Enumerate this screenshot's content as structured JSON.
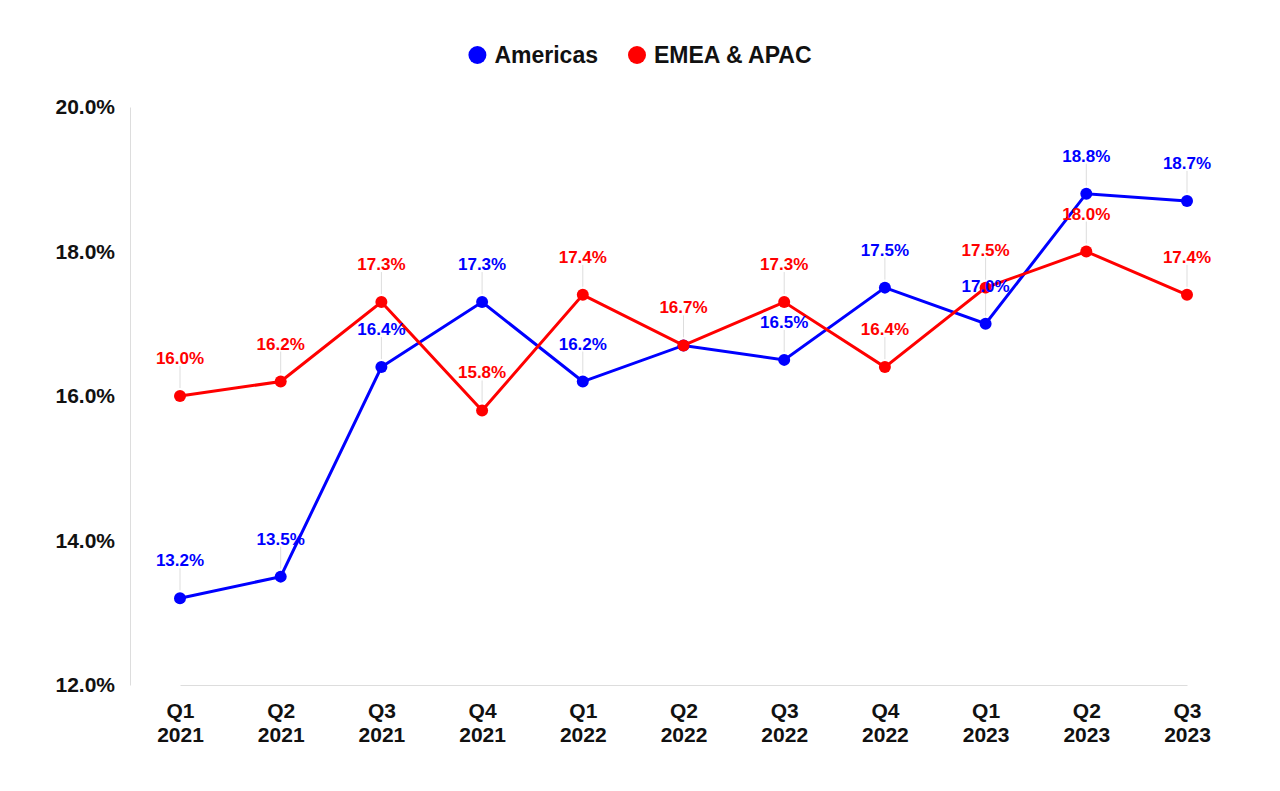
{
  "chart_data": {
    "type": "line",
    "categories": [
      "Q1 2021",
      "Q2 2021",
      "Q3 2021",
      "Q4 2021",
      "Q1 2022",
      "Q2 2022",
      "Q3 2022",
      "Q4 2022",
      "Q1 2023",
      "Q2 2023",
      "Q3 2023"
    ],
    "series": [
      {
        "name": "Americas",
        "color": "#0000ff",
        "marker": "circle",
        "values": [
          13.2,
          13.5,
          16.4,
          17.3,
          16.2,
          16.7,
          16.5,
          17.5,
          17.0,
          18.8,
          18.7
        ],
        "value_labels": [
          "13.2%",
          "13.5%",
          "16.4%",
          "17.3%",
          "16.2%",
          null,
          "16.5%",
          "17.5%",
          "17.0%",
          "18.8%",
          "18.7%"
        ]
      },
      {
        "name": "EMEA & APAC",
        "color": "#ff0000",
        "marker": "circle",
        "values": [
          16.0,
          16.2,
          17.3,
          15.8,
          17.4,
          16.7,
          17.3,
          16.4,
          17.5,
          18.0,
          17.4
        ],
        "value_labels": [
          "16.0%",
          "16.2%",
          "17.3%",
          "15.8%",
          "17.4%",
          "16.7%",
          "17.3%",
          "16.4%",
          "17.5%",
          "18.0%",
          "17.4%"
        ]
      }
    ],
    "ylim": [
      12,
      20
    ],
    "yticks": [
      {
        "value": 12,
        "label": "12.0%"
      },
      {
        "value": 14,
        "label": "14.0%"
      },
      {
        "value": 16,
        "label": "16.0%"
      },
      {
        "value": 18,
        "label": "18.0%"
      },
      {
        "value": 20,
        "label": "20.0%"
      }
    ],
    "grid": false,
    "legend": "top",
    "data_labels": true
  }
}
